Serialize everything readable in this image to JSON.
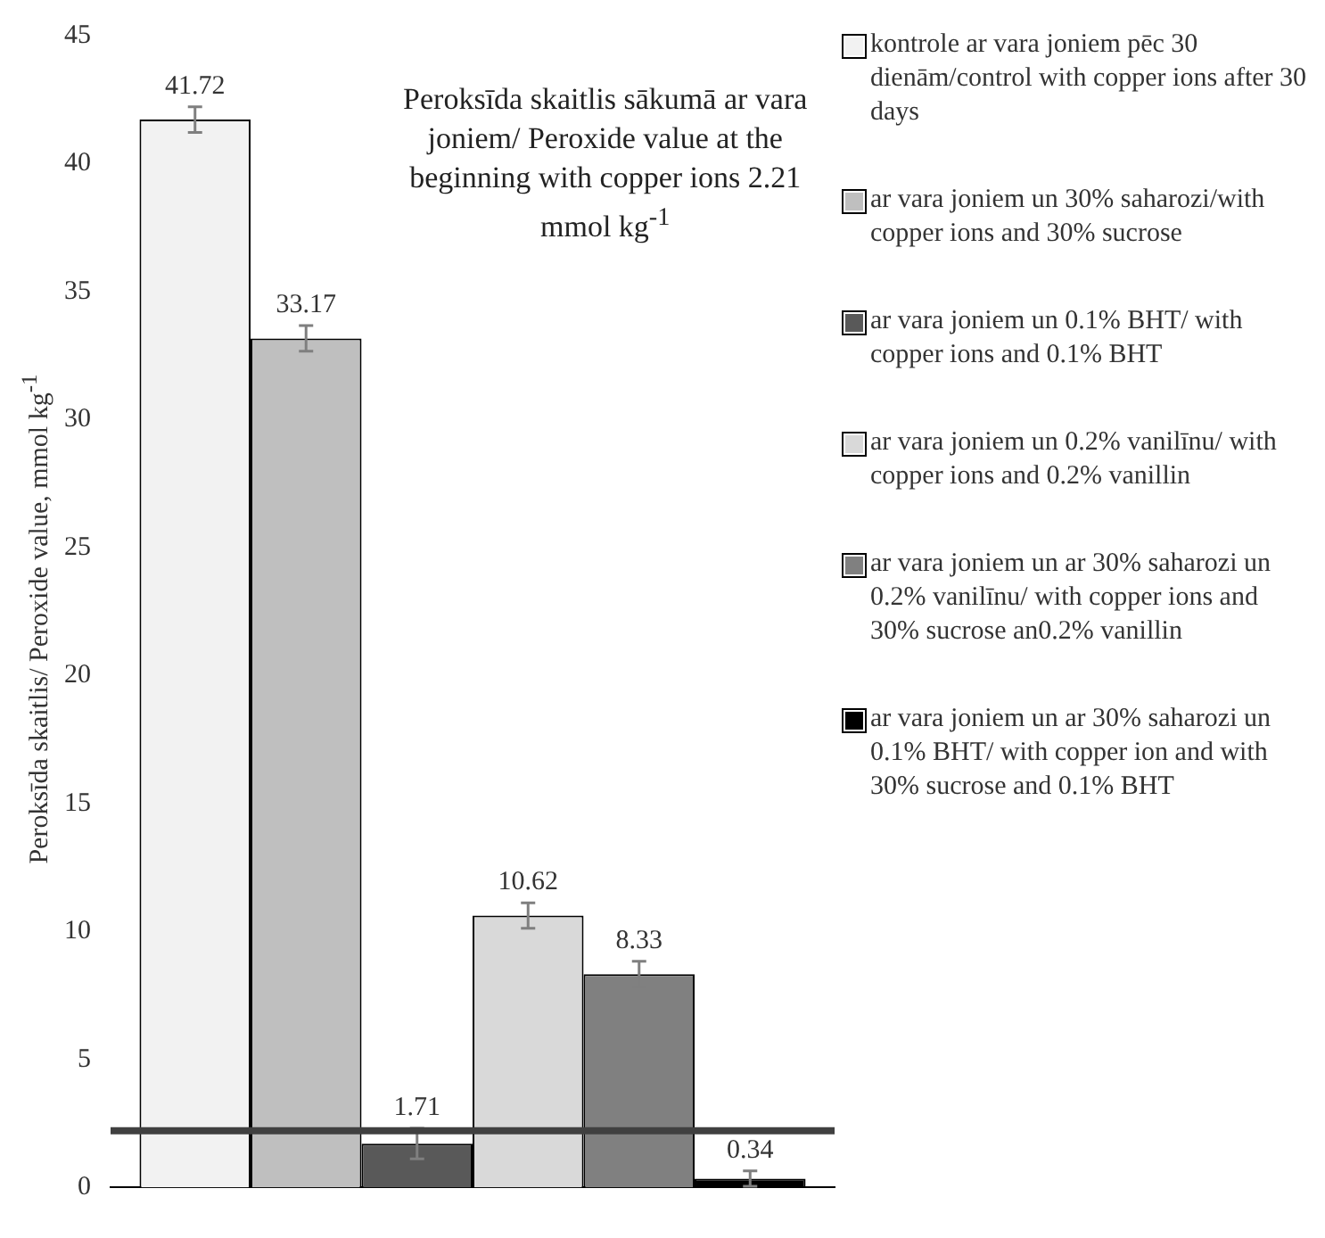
{
  "chart_data": {
    "type": "bar",
    "categories": [
      null
    ],
    "ylabel": "Peroksīda skaitlis/ Peroxide value, mmol kg$^{-1}$",
    "ylim": [
      0,
      45
    ],
    "yticks": [
      0,
      5,
      10,
      15,
      20,
      25,
      30,
      35,
      40,
      45
    ],
    "grid": false,
    "legend": "right",
    "data_labels": true,
    "series": [
      {
        "name": "kontrole ar vara joniem pēc 30 dienām/control with copper ions after 30 days",
        "color": "#f2f2f2",
        "values": [
          41.72
        ],
        "errors": [
          0.5
        ]
      },
      {
        "name": "ar vara joniem un 30% saharozi/with copper ions and 30% sucrose",
        "color": "#bfbfbf",
        "values": [
          33.17
        ],
        "errors": [
          0.5
        ]
      },
      {
        "name": "ar vara joniem un 0.1% BHT/ with copper ions and 0.1% BHT",
        "color": "#595959",
        "values": [
          1.71
        ],
        "errors": [
          0.6
        ]
      },
      {
        "name": "ar vara joniem un 0.2% vanilīnu/ with copper ions and 0.2% vanillin",
        "color": "#d9d9d9",
        "values": [
          10.62
        ],
        "errors": [
          0.5
        ]
      },
      {
        "name": "ar vara joniem un ar 30% saharozi un 0.2% vanilīnu/ with copper ions and 30% sucrose an0.2% vanillin",
        "color": "#808080",
        "values": [
          8.33
        ],
        "errors": [
          0.5
        ]
      },
      {
        "name": "ar vara joniem un ar 30% saharozi un 0.1% BHT/ with copper ion and with 30% sucrose and 0.1% BHT",
        "color": "#000000",
        "values": [
          0.34
        ],
        "errors": [
          0.3
        ]
      }
    ],
    "ref_lines": [
      {
        "axis": "y",
        "value": 2.21,
        "color": "#404040"
      }
    ],
    "annotations": [
      "Peroksīda skaitlis sākumā ar vara joniem/ Peroxide value at the beginning with copper ions 2.21 mmol kg$^{-1}$"
    ]
  }
}
